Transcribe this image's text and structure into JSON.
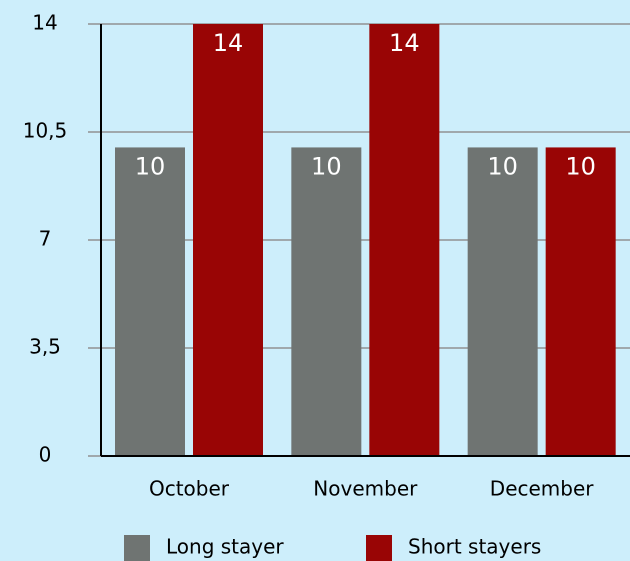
{
  "chart_data": {
    "type": "bar",
    "categories": [
      "October",
      "November",
      "December"
    ],
    "series": [
      {
        "name": "Long stayer",
        "color": "#6f7472",
        "values": [
          10,
          10,
          10
        ]
      },
      {
        "name": "Short stayers",
        "color": "#990505",
        "values": [
          14,
          14,
          10
        ]
      }
    ],
    "ylim": [
      0,
      14
    ],
    "yticks": [
      0,
      {
        "value": 3.5,
        "label": "3,5"
      },
      7,
      {
        "value": 10.5,
        "label": "10,5"
      },
      14
    ],
    "grid": true,
    "legend": "bottom"
  }
}
